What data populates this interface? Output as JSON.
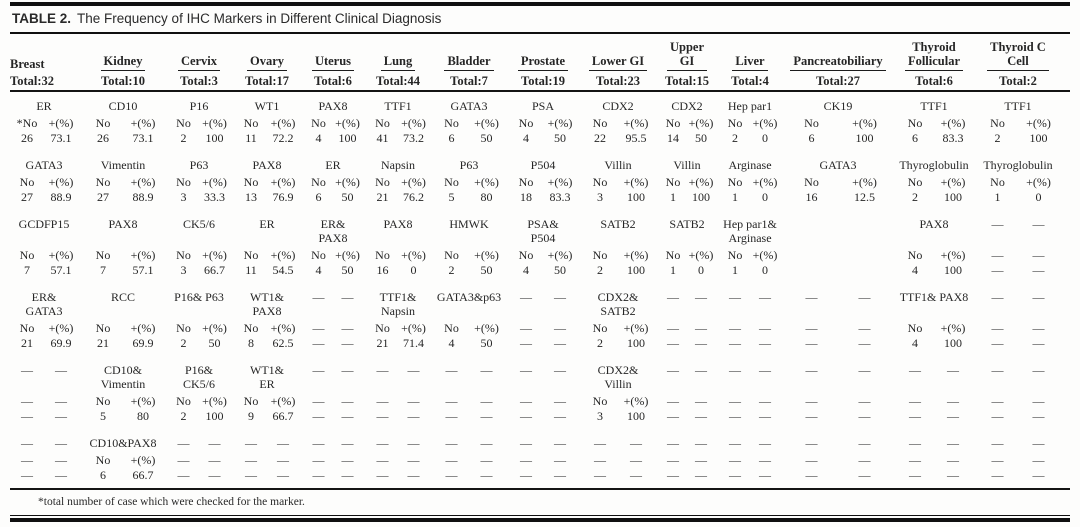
{
  "page": {
    "title_label": "TABLE 2.",
    "title": "The Frequency of IHC Markers in Different Clinical Diagnosis",
    "footnote": "*total number of case which were checked for the marker.",
    "dash_char": "—",
    "text_color": "#262626",
    "rule_color": "#101010"
  },
  "table": {
    "sub_headers": {
      "no": "No",
      "pct": "+(%)"
    },
    "columns": [
      {
        "name": "Breast",
        "total": "Total:32"
      },
      {
        "name": "Kidney",
        "total": "Total:10"
      },
      {
        "name": "Cervix",
        "total": "Total:3"
      },
      {
        "name": "Ovary",
        "total": "Total:17"
      },
      {
        "name": "Uterus",
        "total": "Total:6"
      },
      {
        "name": "Lung",
        "total": "Total:44"
      },
      {
        "name": "Bladder",
        "total": "Total:7"
      },
      {
        "name": "Prostate",
        "total": "Total:19"
      },
      {
        "name": "Lower GI",
        "total": "Total:23"
      },
      {
        "name": "Upper\nGI",
        "total": "Total:15"
      },
      {
        "name": "Liver",
        "total": "Total:4"
      },
      {
        "name": "Pancreatobiliary",
        "total": "Total:27"
      },
      {
        "name": "Thyroid\nFollicular",
        "total": "Total:6"
      },
      {
        "name": "Thyroid C\nCell",
        "total": "Total:2"
      }
    ],
    "rows": [
      {
        "cells": [
          {
            "marker": "ER",
            "no_label": "*No",
            "no": "26",
            "pct": "73.1"
          },
          {
            "marker": "CD10",
            "no": "26",
            "pct": "73.1"
          },
          {
            "marker": "P16",
            "no": "2",
            "pct": "100"
          },
          {
            "marker": "WT1",
            "no": "11",
            "pct": "72.2"
          },
          {
            "marker": "PAX8",
            "no": "4",
            "pct": "100"
          },
          {
            "marker": "TTF1",
            "no": "41",
            "pct": "73.2"
          },
          {
            "marker": "GATA3",
            "no": "6",
            "pct": "50"
          },
          {
            "marker": "PSA",
            "no": "4",
            "pct": "50"
          },
          {
            "marker": "CDX2",
            "no": "22",
            "pct": "95.5"
          },
          {
            "marker": "CDX2",
            "no": "14",
            "pct": "50"
          },
          {
            "marker": "Hep par1",
            "no": "2",
            "pct": "0"
          },
          {
            "marker": "CK19",
            "no": "6",
            "pct": "100"
          },
          {
            "marker": "TTF1",
            "no": "6",
            "pct": "83.3"
          },
          {
            "marker": "TTF1",
            "no": "2",
            "pct": "100"
          }
        ]
      },
      {
        "cells": [
          {
            "marker": "GATA3",
            "no": "27",
            "pct": "88.9"
          },
          {
            "marker": "Vimentin",
            "no": "27",
            "pct": "88.9"
          },
          {
            "marker": "P63",
            "no": "3",
            "pct": "33.3"
          },
          {
            "marker": "PAX8",
            "no": "13",
            "pct": "76.9"
          },
          {
            "marker": "ER",
            "no": "6",
            "pct": "50"
          },
          {
            "marker": "Napsin",
            "no": "21",
            "pct": "76.2"
          },
          {
            "marker": "P63",
            "no": "5",
            "pct": "80"
          },
          {
            "marker": "P504",
            "no": "18",
            "pct": "83.3"
          },
          {
            "marker": "Villin",
            "no": "3",
            "pct": "100"
          },
          {
            "marker": "Villin",
            "no": "1",
            "pct": "100"
          },
          {
            "marker": "Arginase",
            "no": "1",
            "pct": "0"
          },
          {
            "marker": "GATA3",
            "no": "16",
            "pct": "12.5"
          },
          {
            "marker": "Thyroglobulin",
            "no": "2",
            "pct": "100"
          },
          {
            "marker": "Thyroglobulin",
            "no": "1",
            "pct": "0"
          }
        ]
      },
      {
        "cells": [
          {
            "marker": "GCDFP15",
            "no": "7",
            "pct": "57.1"
          },
          {
            "marker": "PAX8",
            "no": "7",
            "pct": "57.1"
          },
          {
            "marker": "CK5/6",
            "no": "3",
            "pct": "66.7"
          },
          {
            "marker": "ER",
            "no": "11",
            "pct": "54.5"
          },
          {
            "marker": "ER&\nPAX8",
            "no": "4",
            "pct": "50"
          },
          {
            "marker": "PAX8",
            "no": "16",
            "pct": "0"
          },
          {
            "marker": "HMWK",
            "no": "2",
            "pct": "50"
          },
          {
            "marker": "PSA&\nP504",
            "no": "4",
            "pct": "50"
          },
          {
            "marker": "SATB2",
            "no": "2",
            "pct": "100"
          },
          {
            "marker": "SATB2",
            "no": "1",
            "pct": "0"
          },
          {
            "marker": "Hep par1&\nArginase",
            "no": "1",
            "pct": "0"
          },
          {
            "blank": true
          },
          {
            "marker": "PAX8",
            "no": "4",
            "pct": "100"
          },
          {
            "dash": true
          }
        ]
      },
      {
        "cells": [
          {
            "marker": "ER&\nGATA3",
            "no": "21",
            "pct": "69.9"
          },
          {
            "marker": "RCC",
            "no": "21",
            "pct": "69.9"
          },
          {
            "marker": "P16& P63",
            "no": "2",
            "pct": "50"
          },
          {
            "marker": "WT1&\nPAX8",
            "no": "8",
            "pct": "62.5"
          },
          {
            "dash": true
          },
          {
            "marker": "TTF1&\nNapsin",
            "no": "21",
            "pct": "71.4"
          },
          {
            "marker": "GATA3&p63",
            "no": "4",
            "pct": "50"
          },
          {
            "dash": true
          },
          {
            "marker": "CDX2&\nSATB2",
            "no": "2",
            "pct": "100"
          },
          {
            "dash": true
          },
          {
            "dash": true
          },
          {
            "dash": true
          },
          {
            "marker": "TTF1& PAX8",
            "no": "4",
            "pct": "100"
          },
          {
            "dash": true
          }
        ]
      },
      {
        "cells": [
          {
            "dash": true
          },
          {
            "marker": "CD10&\nVimentin",
            "no": "5",
            "pct": "80"
          },
          {
            "marker": "P16&\nCK5/6",
            "no": "2",
            "pct": "100"
          },
          {
            "marker": "WT1&\nER",
            "no": "9",
            "pct": "66.7"
          },
          {
            "dash": true
          },
          {
            "dash": true
          },
          {
            "dash": true
          },
          {
            "dash": true
          },
          {
            "marker": "CDX2&\nVillin",
            "no": "3",
            "pct": "100"
          },
          {
            "dash": true
          },
          {
            "dash": true
          },
          {
            "dash": true
          },
          {
            "dash": true
          },
          {
            "dash": true
          }
        ]
      },
      {
        "cells": [
          {
            "dash": true
          },
          {
            "marker": "CD10&PAX8",
            "no": "6",
            "pct": "66.7"
          },
          {
            "dash": true
          },
          {
            "dash": true
          },
          {
            "dash": true
          },
          {
            "dash": true
          },
          {
            "dash": true
          },
          {
            "dash": true
          },
          {
            "dash": true
          },
          {
            "dash": true
          },
          {
            "dash": true
          },
          {
            "dash": true
          },
          {
            "dash": true
          },
          {
            "dash": true
          }
        ]
      }
    ]
  }
}
